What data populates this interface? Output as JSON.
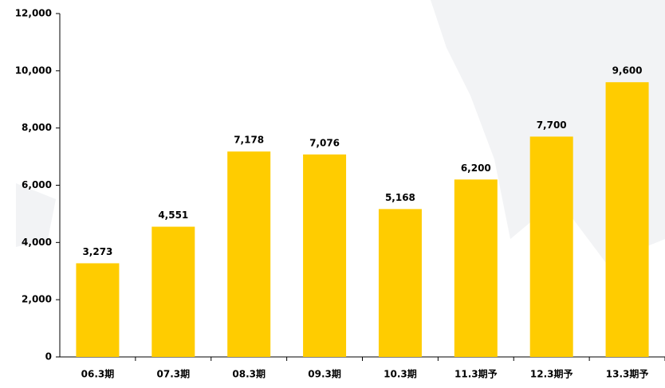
{
  "chart_data": {
    "type": "bar",
    "categories": [
      "06.3期",
      "07.3期",
      "08.3期",
      "09.3期",
      "10.3期",
      "11.3期予",
      "12.3期予",
      "13.3期予"
    ],
    "values": [
      3273,
      4551,
      7178,
      7076,
      5168,
      6200,
      7700,
      9600
    ],
    "value_labels": [
      "3,273",
      "4,551",
      "7,178",
      "7,076",
      "5,168",
      "6,200",
      "7,700",
      "9,600"
    ],
    "color": "#ffcc00",
    "ylim": [
      0,
      12000
    ],
    "yticks": [
      0,
      {
        "value": 2000,
        "label": "2,000"
      },
      {
        "value": 4000,
        "label": "4,000"
      },
      {
        "value": 6000,
        "label": "6,000"
      },
      {
        "value": 8000,
        "label": "8,000"
      },
      {
        "value": 10000,
        "label": "10,000"
      },
      {
        "value": 12000,
        "label": "12,000"
      }
    ]
  }
}
